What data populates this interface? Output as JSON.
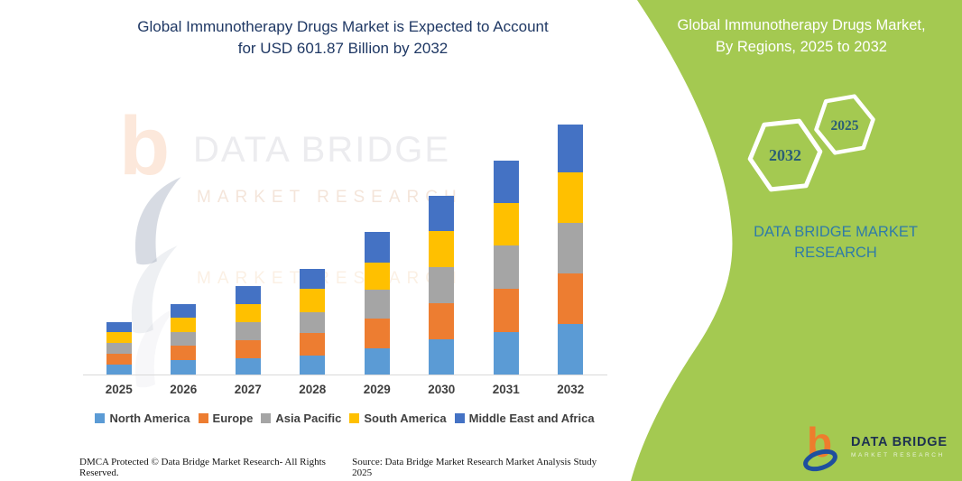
{
  "header": {
    "title_line1": "Global Immunotherapy Drugs Market is Expected to Account",
    "title_line2": "for USD 601.87 Billion by 2032"
  },
  "chart_data": {
    "type": "bar",
    "stacked": true,
    "unit": "USD Billion",
    "title": "Global Immunotherapy Drugs Market is Expected to Account for USD 601.87 Billion by 2032",
    "xlabel": "",
    "ylabel": "",
    "ylim": [
      0,
      620
    ],
    "grid": false,
    "legend_position": "bottom",
    "axis_color": "#d9d9d9",
    "categories": [
      "2025",
      "2026",
      "2027",
      "2028",
      "2029",
      "2030",
      "2031",
      "2032"
    ],
    "series": [
      {
        "name": "North America",
        "color": "#5B9BD5",
        "values": [
          25,
          35,
          40,
          46,
          63,
          84,
          103,
          121
        ]
      },
      {
        "name": "Europe",
        "color": "#ED7D31",
        "values": [
          25,
          34,
          43,
          53,
          72,
          88,
          103,
          122
        ]
      },
      {
        "name": "Asia Pacific",
        "color": "#A5A5A5",
        "values": [
          26,
          34,
          43,
          52,
          70,
          87,
          104,
          122
        ]
      },
      {
        "name": "South America",
        "color": "#FFC000",
        "values": [
          26,
          34,
          44,
          56,
          65,
          86,
          103,
          121
        ]
      },
      {
        "name": "Middle East and Africa",
        "color": "#4472C4",
        "values": [
          25,
          33,
          43,
          47,
          73,
          86,
          103,
          115.87
        ]
      }
    ],
    "totals": [
      127,
      170,
      213,
      254,
      343,
      431,
      516,
      601.87
    ]
  },
  "side_panel": {
    "bg_color": "#a4c951",
    "title_line1": "Global Immunotherapy Drugs Market,",
    "title_line2": "By Regions, 2025 to 2032",
    "hexagon_end_year": "2032",
    "hexagon_start_year": "2025",
    "brand_line1": "DATA BRIDGE MARKET",
    "brand_line2": "RESEARCH",
    "logo": {
      "b_glyph": "b",
      "name": "DATA BRIDGE",
      "sub": "MARKET RESEARCH"
    }
  },
  "watermark": {
    "b_glyph": "b",
    "brand": "DATA BRIDGE",
    "sub": "MARKET RESEARCH"
  },
  "footer": {
    "left": "DMCA Protected © Data Bridge Market Research- All Rights Reserved.",
    "right": "Source: Data Bridge Market Research Market Analysis Study 2025"
  }
}
